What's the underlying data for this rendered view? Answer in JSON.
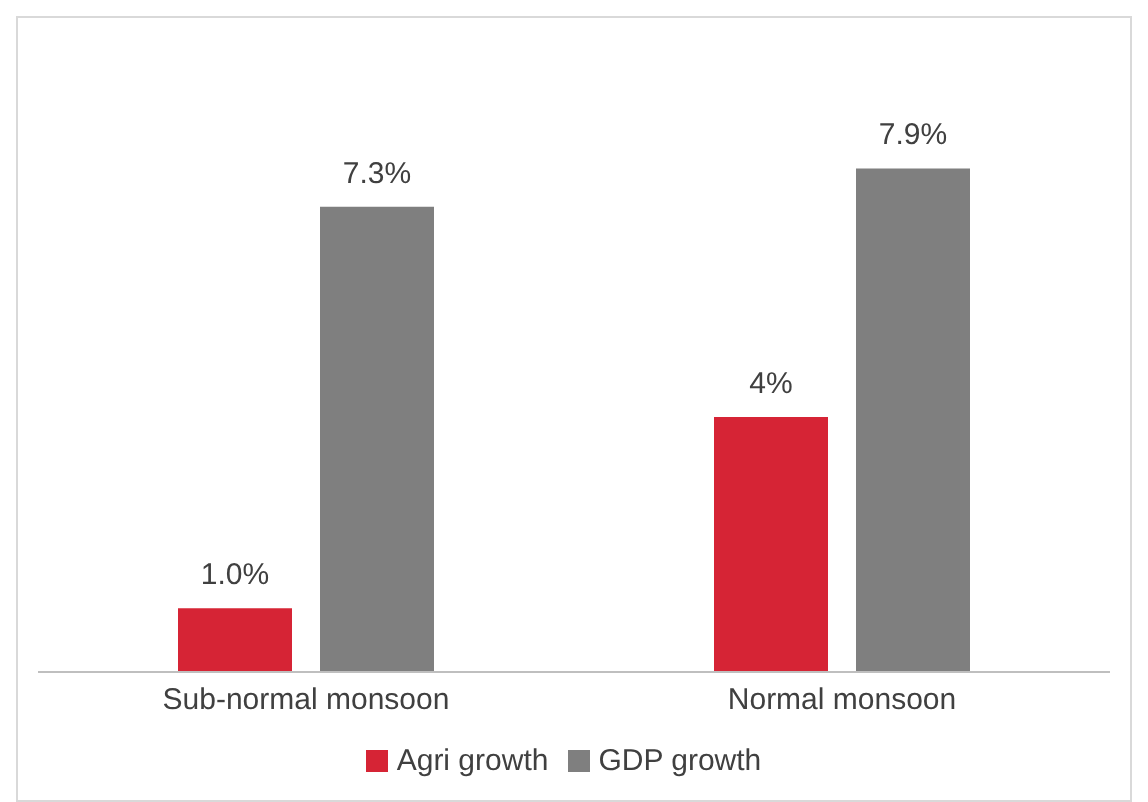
{
  "chart_data": {
    "type": "bar",
    "categories": [
      "Sub-normal monsoon",
      "Normal monsoon"
    ],
    "series": [
      {
        "name": "Agri growth",
        "color": "#d62435",
        "values": [
          1.0,
          4
        ],
        "value_labels": [
          "1.0%",
          "4%"
        ]
      },
      {
        "name": "GDP growth",
        "color": "#7f7f7f",
        "values": [
          7.3,
          7.9
        ],
        "value_labels": [
          "7.3%",
          "7.9%"
        ]
      }
    ],
    "legend": "bottom",
    "grid": false
  }
}
